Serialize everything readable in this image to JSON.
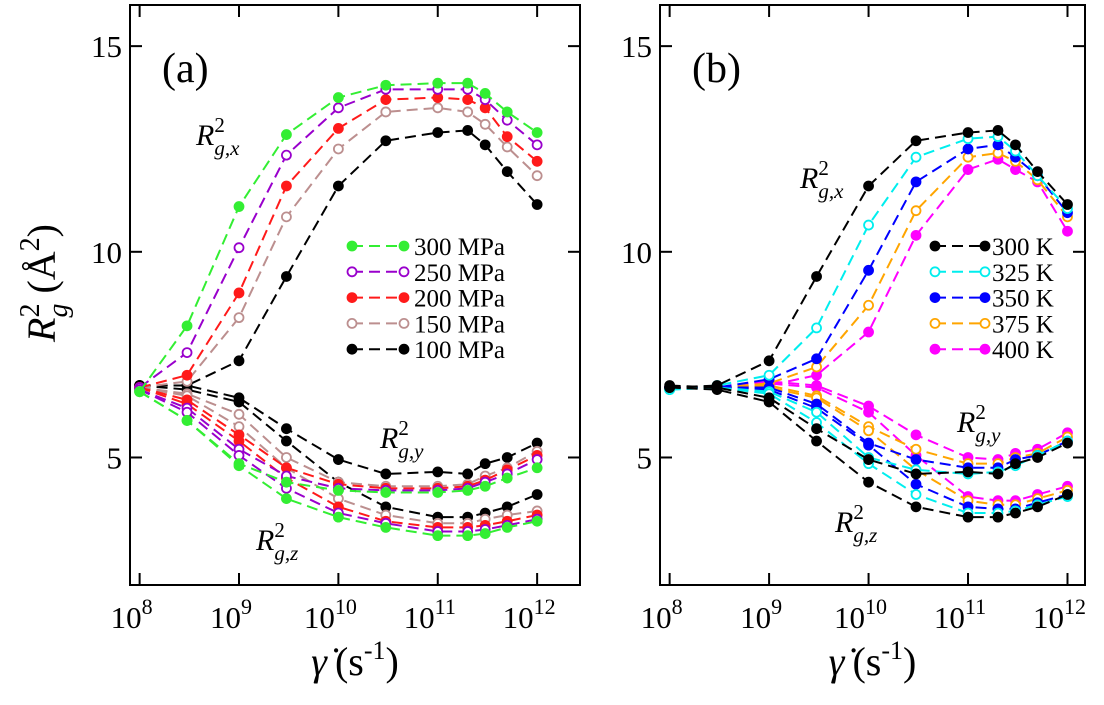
{
  "chart_data": [
    {
      "type": "line",
      "xscale": "log",
      "legend": "center-right",
      "annotations": [
        {
          "text": "(a)"
        },
        {
          "text": "R",
          "sup": "2",
          "sub": "g,x"
        },
        {
          "text": "R",
          "sup": "2",
          "sub": "g,y"
        },
        {
          "text": "R",
          "sup": "2",
          "sub": "g,z"
        }
      ],
      "ylabel": {
        "symbol": "R",
        "sub": "g",
        "sup": "2",
        "unit": "(Å",
        "unit_sup": "2",
        "unit_close": ")"
      },
      "xlabel": {
        "symbol": "γ̇",
        "unit": "(s",
        "unit_sup": "-1",
        "unit_close": ")"
      },
      "xlim": [
        80000000,
        2700000000000
      ],
      "ylim": [
        1.9,
        16.0
      ],
      "xticks": [
        {
          "value": 100000000,
          "label": "10",
          "exponent": "8"
        },
        {
          "value": 1000000000,
          "label": "10",
          "exponent": "9"
        },
        {
          "value": 10000000000,
          "label": "10",
          "exponent": "10"
        },
        {
          "value": 100000000000,
          "label": "10",
          "exponent": "11"
        },
        {
          "value": 1000000000000,
          "label": "10",
          "exponent": "12"
        }
      ],
      "yticks": [
        5,
        10,
        15
      ],
      "x": [
        100000000,
        300000000,
        1000000000,
        3000000000,
        10000000000,
        30000000000,
        100000000000,
        200000000000,
        300000000000,
        500000000000,
        1000000000000
      ],
      "series": [
        {
          "name": "300 MPa",
          "color": "#33ee33",
          "marker": "filled",
          "rgx": [
            6.6,
            8.2,
            11.1,
            12.85,
            13.75,
            14.05,
            14.1,
            14.1,
            13.85,
            13.4,
            12.9
          ],
          "rgy": [
            6.6,
            5.9,
            4.85,
            4.4,
            4.2,
            4.15,
            4.15,
            4.2,
            4.3,
            4.5,
            4.75
          ],
          "rgz": [
            6.6,
            5.9,
            4.8,
            4.0,
            3.55,
            3.3,
            3.1,
            3.1,
            3.15,
            3.3,
            3.45
          ]
        },
        {
          "name": "250 MPa",
          "color": "#9900cc",
          "marker": "open",
          "rgx": [
            6.7,
            7.55,
            10.1,
            12.35,
            13.5,
            13.95,
            13.95,
            13.95,
            13.7,
            13.2,
            12.6
          ],
          "rgy": [
            6.65,
            6.2,
            5.2,
            4.55,
            4.25,
            4.2,
            4.2,
            4.25,
            4.4,
            4.6,
            4.95
          ],
          "rgz": [
            6.65,
            6.1,
            5.05,
            4.25,
            3.65,
            3.4,
            3.2,
            3.2,
            3.25,
            3.35,
            3.5
          ]
        },
        {
          "name": "200 MPa",
          "color": "#ff1a1a",
          "marker": "filled",
          "rgx": [
            6.7,
            7.0,
            9.0,
            11.6,
            13.0,
            13.7,
            13.75,
            13.7,
            13.5,
            12.8,
            12.2
          ],
          "rgy": [
            6.7,
            6.4,
            5.55,
            4.75,
            4.35,
            4.25,
            4.25,
            4.3,
            4.45,
            4.7,
            5.05
          ],
          "rgz": [
            6.7,
            6.3,
            5.4,
            4.5,
            3.8,
            3.45,
            3.3,
            3.3,
            3.35,
            3.45,
            3.6
          ]
        },
        {
          "name": "150 MPa",
          "color": "#bc8f8f",
          "marker": "open",
          "rgx": [
            6.7,
            6.85,
            8.4,
            10.85,
            12.5,
            13.4,
            13.5,
            13.4,
            13.1,
            12.55,
            11.85
          ],
          "rgy": [
            6.7,
            6.55,
            6.05,
            5.0,
            4.4,
            4.3,
            4.3,
            4.35,
            4.55,
            4.75,
            5.15
          ],
          "rgz": [
            6.7,
            6.5,
            5.75,
            4.75,
            4.0,
            3.6,
            3.4,
            3.4,
            3.5,
            3.6,
            3.7
          ]
        },
        {
          "name": "100 MPa",
          "color": "#000000",
          "marker": "filled",
          "rgx": [
            6.75,
            6.75,
            7.35,
            9.4,
            11.6,
            12.7,
            12.9,
            12.95,
            12.6,
            11.95,
            11.15
          ],
          "rgy": [
            6.75,
            6.75,
            6.45,
            5.7,
            4.95,
            4.6,
            4.65,
            4.6,
            4.85,
            5.0,
            5.35
          ],
          "rgz": [
            6.75,
            6.65,
            6.35,
            5.4,
            4.4,
            3.8,
            3.55,
            3.55,
            3.65,
            3.8,
            4.1
          ]
        }
      ]
    },
    {
      "type": "line",
      "xscale": "log",
      "legend": "center-right",
      "annotations": [
        {
          "text": "(b)"
        },
        {
          "text": "R",
          "sup": "2",
          "sub": "g,x"
        },
        {
          "text": "R",
          "sup": "2",
          "sub": "g,y"
        },
        {
          "text": "R",
          "sup": "2",
          "sub": "g,z"
        }
      ],
      "xlabel": {
        "symbol": "γ̇",
        "unit": "(s",
        "unit_sup": "-1",
        "unit_close": ")"
      },
      "xlim": [
        80000000,
        1500000000000
      ],
      "ylim": [
        1.9,
        16.0
      ],
      "xticks": [
        {
          "value": 100000000,
          "label": "10",
          "exponent": "8"
        },
        {
          "value": 1000000000,
          "label": "10",
          "exponent": "9"
        },
        {
          "value": 10000000000,
          "label": "10",
          "exponent": "10"
        },
        {
          "value": 100000000000,
          "label": "10",
          "exponent": "11"
        },
        {
          "value": 1000000000000,
          "label": "10",
          "exponent": "12"
        }
      ],
      "yticks": [
        5,
        10,
        15
      ],
      "x": [
        100000000,
        300000000,
        1000000000,
        3000000000,
        10000000000,
        30000000000,
        100000000000,
        200000000000,
        300000000000,
        500000000000,
        1000000000000
      ],
      "series": [
        {
          "name": "300 K",
          "color": "#000000",
          "marker": "filled",
          "rgx": [
            6.7,
            6.75,
            7.35,
            9.4,
            11.6,
            12.7,
            12.9,
            12.95,
            12.6,
            11.95,
            11.15
          ],
          "rgy": [
            6.75,
            6.7,
            6.45,
            5.7,
            4.95,
            4.6,
            4.65,
            4.6,
            4.85,
            5.0,
            5.35
          ],
          "rgz": [
            6.7,
            6.65,
            6.35,
            5.4,
            4.4,
            3.8,
            3.55,
            3.55,
            3.65,
            3.8,
            4.1
          ]
        },
        {
          "name": "325 K",
          "color": "#00eeee",
          "marker": "open",
          "rgx": [
            6.65,
            6.75,
            7.0,
            8.15,
            10.65,
            12.3,
            12.75,
            12.8,
            12.45,
            11.85,
            11.05
          ],
          "rgy": [
            6.65,
            6.7,
            6.6,
            6.1,
            5.0,
            4.7,
            4.6,
            4.65,
            4.8,
            5.05,
            5.4
          ],
          "rgz": [
            6.65,
            6.7,
            6.55,
            5.85,
            4.85,
            4.1,
            3.65,
            3.65,
            3.7,
            3.85,
            4.05
          ]
        },
        {
          "name": "350 K",
          "color": "#0000ff",
          "marker": "filled",
          "rgx": [
            6.7,
            6.7,
            6.9,
            7.4,
            9.55,
            11.7,
            12.5,
            12.6,
            12.3,
            11.85,
            10.95
          ],
          "rgy": [
            6.7,
            6.7,
            6.7,
            6.3,
            5.35,
            4.95,
            4.75,
            4.75,
            4.95,
            5.05,
            5.4
          ],
          "rgz": [
            6.7,
            6.7,
            6.65,
            6.2,
            5.3,
            4.35,
            3.8,
            3.75,
            3.75,
            3.9,
            4.1
          ]
        },
        {
          "name": "375 K",
          "color": "#ffa500",
          "marker": "open",
          "rgx": [
            6.7,
            6.7,
            6.8,
            7.2,
            8.7,
            11.0,
            12.3,
            12.4,
            12.2,
            11.75,
            10.85
          ],
          "rgy": [
            6.7,
            6.7,
            6.75,
            6.5,
            5.75,
            5.2,
            4.85,
            4.85,
            5.0,
            5.1,
            5.5
          ],
          "rgz": [
            6.7,
            6.7,
            6.7,
            6.45,
            5.65,
            4.7,
            3.95,
            3.85,
            3.85,
            4.0,
            4.2
          ]
        },
        {
          "name": "400 K",
          "color": "#ff00ff",
          "marker": "filled",
          "rgx": [
            6.7,
            6.7,
            6.75,
            7.0,
            8.05,
            10.4,
            12.0,
            12.25,
            12.0,
            11.7,
            10.5
          ],
          "rgy": [
            6.7,
            6.7,
            6.85,
            6.75,
            6.25,
            5.55,
            5.0,
            4.95,
            5.1,
            5.2,
            5.6
          ],
          "rgz": [
            6.7,
            6.7,
            6.8,
            6.7,
            6.1,
            5.05,
            4.05,
            3.95,
            3.95,
            4.1,
            4.3
          ]
        }
      ]
    }
  ]
}
